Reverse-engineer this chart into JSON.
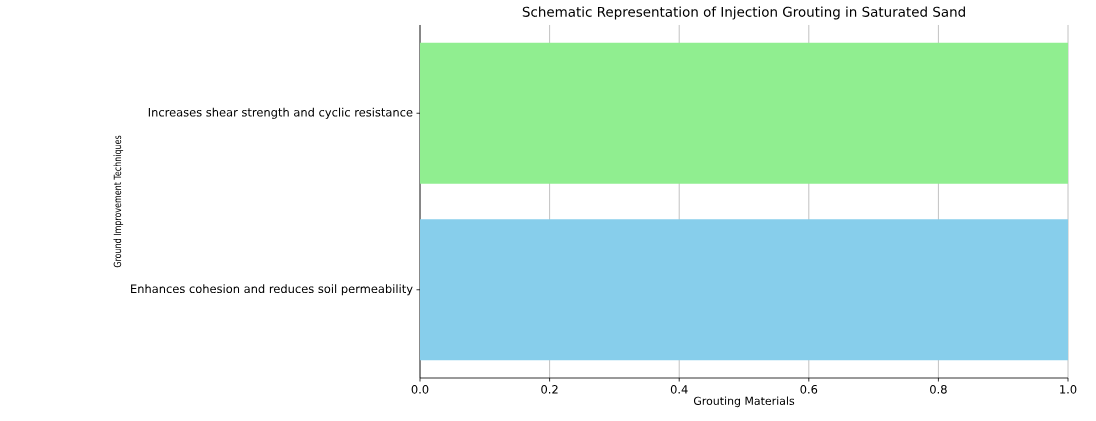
{
  "chart_data": {
    "type": "bar",
    "orientation": "horizontal",
    "title": "Schematic Representation of Injection Grouting in Saturated Sand",
    "xlabel": "Grouting Materials",
    "ylabel": "Ground Improvement Techniques",
    "categories": [
      "Increases shear strength and cyclic resistance",
      "Enhances cohesion and reduces soil permeability"
    ],
    "values": [
      1.0,
      1.0
    ],
    "colors": [
      "#90ee90",
      "#87ceeb"
    ],
    "xlim": [
      0,
      1.0
    ],
    "xticks": [
      {
        "value": 0,
        "label": "0.0"
      },
      {
        "value": 0.2,
        "label": "0.2"
      },
      {
        "value": 0.4,
        "label": "0.4"
      },
      {
        "value": 0.6,
        "label": "0.6"
      },
      {
        "value": 0.8,
        "label": "0.8"
      },
      {
        "value": 1.0,
        "label": "1.0"
      }
    ],
    "grid": "x"
  }
}
